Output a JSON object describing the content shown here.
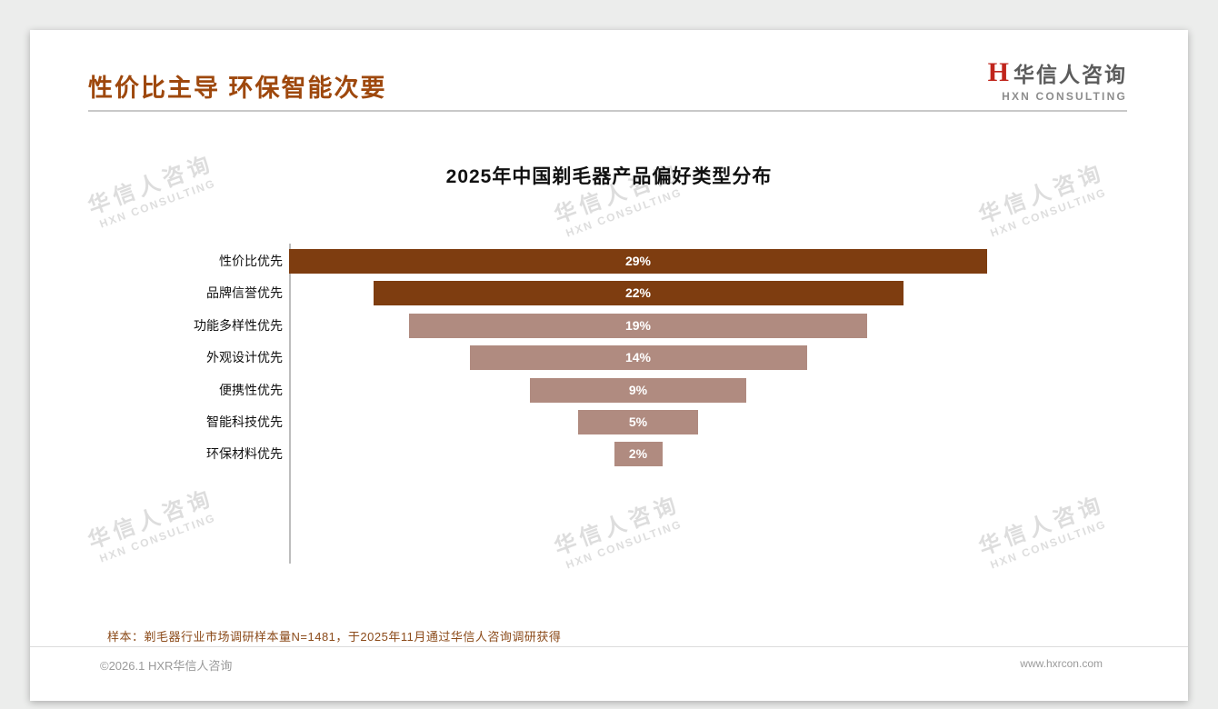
{
  "slide": {
    "title": "性价比主导 环保智能次要",
    "logo": {
      "monogram": "H",
      "cn": "华信人咨询",
      "en": "HXN CONSULTING"
    },
    "watermark": {
      "line1": "华信人咨询",
      "line2": "HXN CONSULTING"
    },
    "footnote": "样本：剃毛器行业市场调研样本量N=1481，于2025年11月通过华信人咨询调研获得",
    "footer": {
      "left": "©2026.1 HXR华信人咨询",
      "right": "www.hxrcon.com"
    }
  },
  "colors": {
    "accent": "#9e480d",
    "logo_red": "#c0251c",
    "bar_dark": "#7e3d10",
    "bar_light": "#b08b80",
    "value_label": "#ffffff"
  },
  "chart_data": {
    "type": "bar",
    "orientation": "horizontal-centered-funnel",
    "title": "2025年中国剃毛器产品偏好类型分布",
    "categories": [
      "性价比优先",
      "品牌信誉优先",
      "功能多样性优先",
      "外观设计优先",
      "便携性优先",
      "智能科技优先",
      "环保材料优先"
    ],
    "values": [
      29,
      22,
      19,
      14,
      9,
      5,
      2
    ],
    "value_labels": [
      "29%",
      "22%",
      "19%",
      "14%",
      "9%",
      "5%",
      "2%"
    ],
    "bar_colors": [
      "dark",
      "dark",
      "light",
      "light",
      "light",
      "light",
      "light"
    ],
    "xlabel": "",
    "ylabel": "",
    "xlim": [
      0,
      29
    ],
    "grid": false,
    "legend": false
  }
}
